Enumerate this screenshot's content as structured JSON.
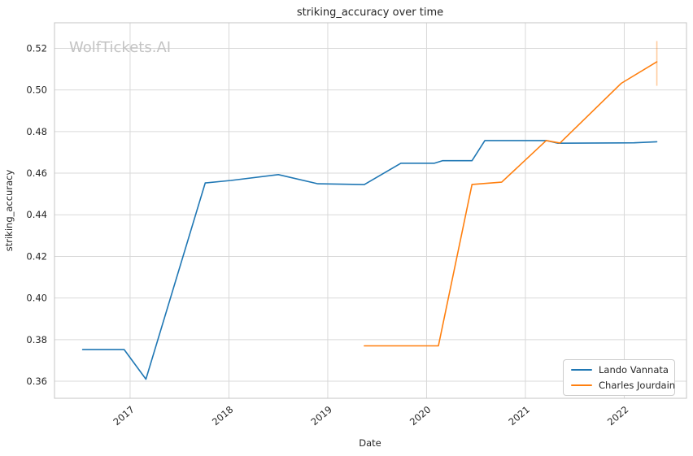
{
  "watermark": "WolfTickets.AI",
  "chart_data": {
    "type": "line",
    "title": "striking_accuracy over time",
    "xlabel": "Date",
    "ylabel": "striking_accuracy",
    "grid": true,
    "legend_position": "lower right",
    "xlim": [
      2016.235,
      2022.63
    ],
    "ylim": [
      0.3518,
      0.5323
    ],
    "x_tick_values": [
      2017,
      2018,
      2019,
      2020,
      2021,
      2022
    ],
    "x_tick_labels": [
      "2017",
      "2018",
      "2019",
      "2020",
      "2021",
      "2022"
    ],
    "y_tick_values": [
      0.36,
      0.38,
      0.4,
      0.42,
      0.44,
      0.46,
      0.48,
      0.5,
      0.52
    ],
    "y_tick_labels": [
      "0.36",
      "0.38",
      "0.40",
      "0.42",
      "0.44",
      "0.46",
      "0.48",
      "0.50",
      "0.52"
    ],
    "colors": {
      "grid": "#d9d9d9",
      "spine": "#c4c4c4",
      "text": "#262626",
      "watermark": "#c3c3c3"
    },
    "series": [
      {
        "name": "Lando Vannata",
        "color": "#1f77b4",
        "points": [
          [
            2016.52,
            0.3752
          ],
          [
            2016.94,
            0.3752
          ],
          [
            2017.16,
            0.361
          ],
          [
            2017.76,
            0.4553
          ],
          [
            2018.02,
            0.4565
          ],
          [
            2018.5,
            0.4593
          ],
          [
            2018.9,
            0.4549
          ],
          [
            2019.37,
            0.4545
          ],
          [
            2019.74,
            0.4648
          ],
          [
            2020.08,
            0.4648
          ],
          [
            2020.16,
            0.466
          ],
          [
            2020.46,
            0.466
          ],
          [
            2020.59,
            0.4757
          ],
          [
            2021.21,
            0.4757
          ],
          [
            2021.33,
            0.4744
          ],
          [
            2022.1,
            0.4746
          ],
          [
            2022.33,
            0.4751
          ]
        ]
      },
      {
        "name": "Charles Jourdain",
        "color": "#ff7f0e",
        "points": [
          [
            2019.37,
            0.377
          ],
          [
            2020.12,
            0.377
          ],
          [
            2020.46,
            0.4546
          ],
          [
            2020.76,
            0.4557
          ],
          [
            2021.21,
            0.4757
          ],
          [
            2021.35,
            0.4745
          ],
          [
            2021.97,
            0.5032
          ],
          [
            2022.33,
            0.5135
          ]
        ],
        "end_marker": {
          "x": 2022.33,
          "y_from": 0.502,
          "y_to": 0.5235,
          "opacity": 0.4
        }
      }
    ]
  }
}
